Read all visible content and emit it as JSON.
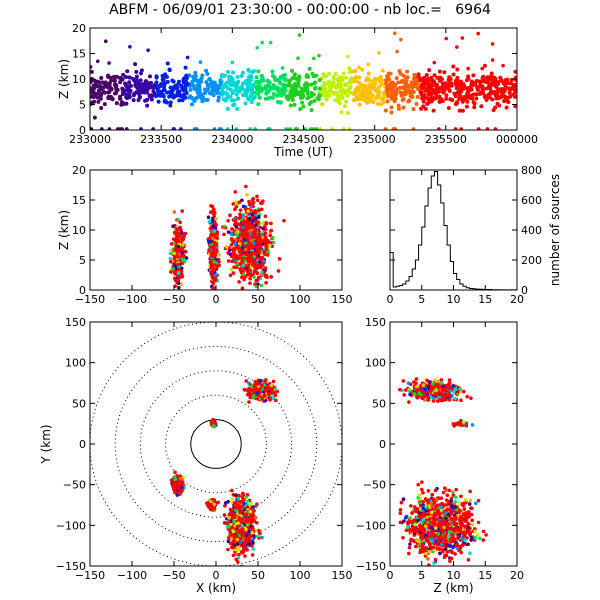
{
  "header": {
    "title": "ABFM - 06/09/01 23:30:00 - 00:00:00 - nb loc.=   6964"
  },
  "chart_data": [
    {
      "id": "time-height",
      "type": "scatter",
      "xlabel": "Time (UT)",
      "ylabel": "Z (km)",
      "xlim": [
        233000,
        240000
      ],
      "ylim": [
        0,
        20
      ],
      "x_ticks": [
        "233000",
        "233500",
        "234000",
        "234500",
        "235000",
        "235500",
        "000000"
      ],
      "y_ticks": [
        "0",
        "5",
        "10",
        "15",
        "20"
      ],
      "colormap": "rainbow by time (purple→blue→cyan→green→yellow→orange→red)",
      "clusters": [
        {
          "t": 233010,
          "z": 8.5,
          "color": "#000000"
        },
        {
          "t": 233200,
          "z": 8.0,
          "color": "#4a0066"
        },
        {
          "t": 233500,
          "z": 8.5,
          "color": "#3a00a0"
        },
        {
          "t": 233800,
          "z": 8.0,
          "color": "#0020e0"
        },
        {
          "t": 234100,
          "z": 8.5,
          "color": "#0090ff"
        },
        {
          "t": 234350,
          "z": 8.0,
          "color": "#00d8d8"
        },
        {
          "t": 234600,
          "z": 8.5,
          "color": "#00e060"
        },
        {
          "t": 234900,
          "z": 8.0,
          "color": "#20d020"
        },
        {
          "t": 235200,
          "z": 8.5,
          "color": "#c0f000"
        },
        {
          "t": 235450,
          "z": 8.0,
          "color": "#ffc000"
        },
        {
          "t": 235700,
          "z": 8.0,
          "color": "#ff6000"
        },
        {
          "t": 235900,
          "z": 8.5,
          "color": "#ff0000"
        }
      ]
    },
    {
      "id": "x-z",
      "type": "scatter",
      "xlim": [
        -150,
        150
      ],
      "ylim": [
        0,
        20
      ],
      "ylabel": "Z (km)",
      "x_ticks": [
        "−150",
        "−100",
        "−50",
        "0",
        "50",
        "100",
        "150"
      ],
      "y_ticks": [
        "0",
        "5",
        "10",
        "15",
        "20"
      ],
      "clusters": [
        {
          "x": -45,
          "z": 6,
          "spread_x": 6,
          "spread_z": 3
        },
        {
          "x": -3,
          "z": 7,
          "spread_x": 4,
          "spread_z": 4
        },
        {
          "x": 40,
          "z": 8,
          "spread_x": 18,
          "spread_z": 4
        }
      ]
    },
    {
      "id": "histogram",
      "type": "bar",
      "xlim": [
        0,
        20
      ],
      "ylim": [
        0,
        800
      ],
      "ylabel": "number of sources",
      "x_ticks": [
        "0",
        "5",
        "10",
        "15",
        "20"
      ],
      "y_ticks": [
        "0",
        "200",
        "400",
        "600",
        "800"
      ],
      "bin_width": 0.5,
      "values": [
        250,
        20,
        25,
        30,
        40,
        60,
        90,
        140,
        200,
        300,
        420,
        560,
        680,
        760,
        790,
        700,
        580,
        430,
        300,
        190,
        110,
        70,
        40,
        25,
        15,
        10,
        8,
        6,
        5,
        4,
        3,
        3,
        2,
        2,
        2,
        1,
        1,
        1,
        1,
        1
      ]
    },
    {
      "id": "plan-view",
      "type": "scatter",
      "xlabel": "X (km)",
      "ylabel": "Y (km)",
      "xlim": [
        -150,
        150
      ],
      "ylim": [
        -150,
        150
      ],
      "x_ticks": [
        "−150",
        "−100",
        "−50",
        "0",
        "50",
        "100",
        "150"
      ],
      "y_ticks": [
        "−150",
        "−100",
        "−50",
        "0",
        "50",
        "100",
        "150"
      ],
      "range_rings_km": [
        30,
        60,
        90,
        120,
        150
      ],
      "clusters": [
        {
          "x": 55,
          "y": 65,
          "spread_x": 14,
          "spread_y": 10
        },
        {
          "x": -45,
          "y": -50,
          "spread_x": 6,
          "spread_y": 10
        },
        {
          "x": 30,
          "y": -100,
          "spread_x": 15,
          "spread_y": 30
        },
        {
          "x": -5,
          "y": -75,
          "spread_x": 4,
          "spread_y": 5
        },
        {
          "x": -3,
          "y": 25,
          "spread_x": 2,
          "spread_y": 3
        }
      ]
    },
    {
      "id": "z-y",
      "type": "scatter",
      "xlabel": "Z (km)",
      "xlim": [
        0,
        20
      ],
      "ylim": [
        -150,
        150
      ],
      "x_ticks": [
        "0",
        "5",
        "10",
        "15",
        "20"
      ],
      "y_ticks": [
        "−150",
        "−100",
        "−50",
        "0",
        "50",
        "100",
        "150"
      ],
      "clusters": [
        {
          "z": 7,
          "y": 65,
          "spread_z": 3,
          "spread_y": 10
        },
        {
          "z": 8,
          "y": -100,
          "spread_z": 4,
          "spread_y": 35
        },
        {
          "z": 11,
          "y": 25,
          "spread_z": 1,
          "spread_y": 3
        }
      ]
    }
  ]
}
